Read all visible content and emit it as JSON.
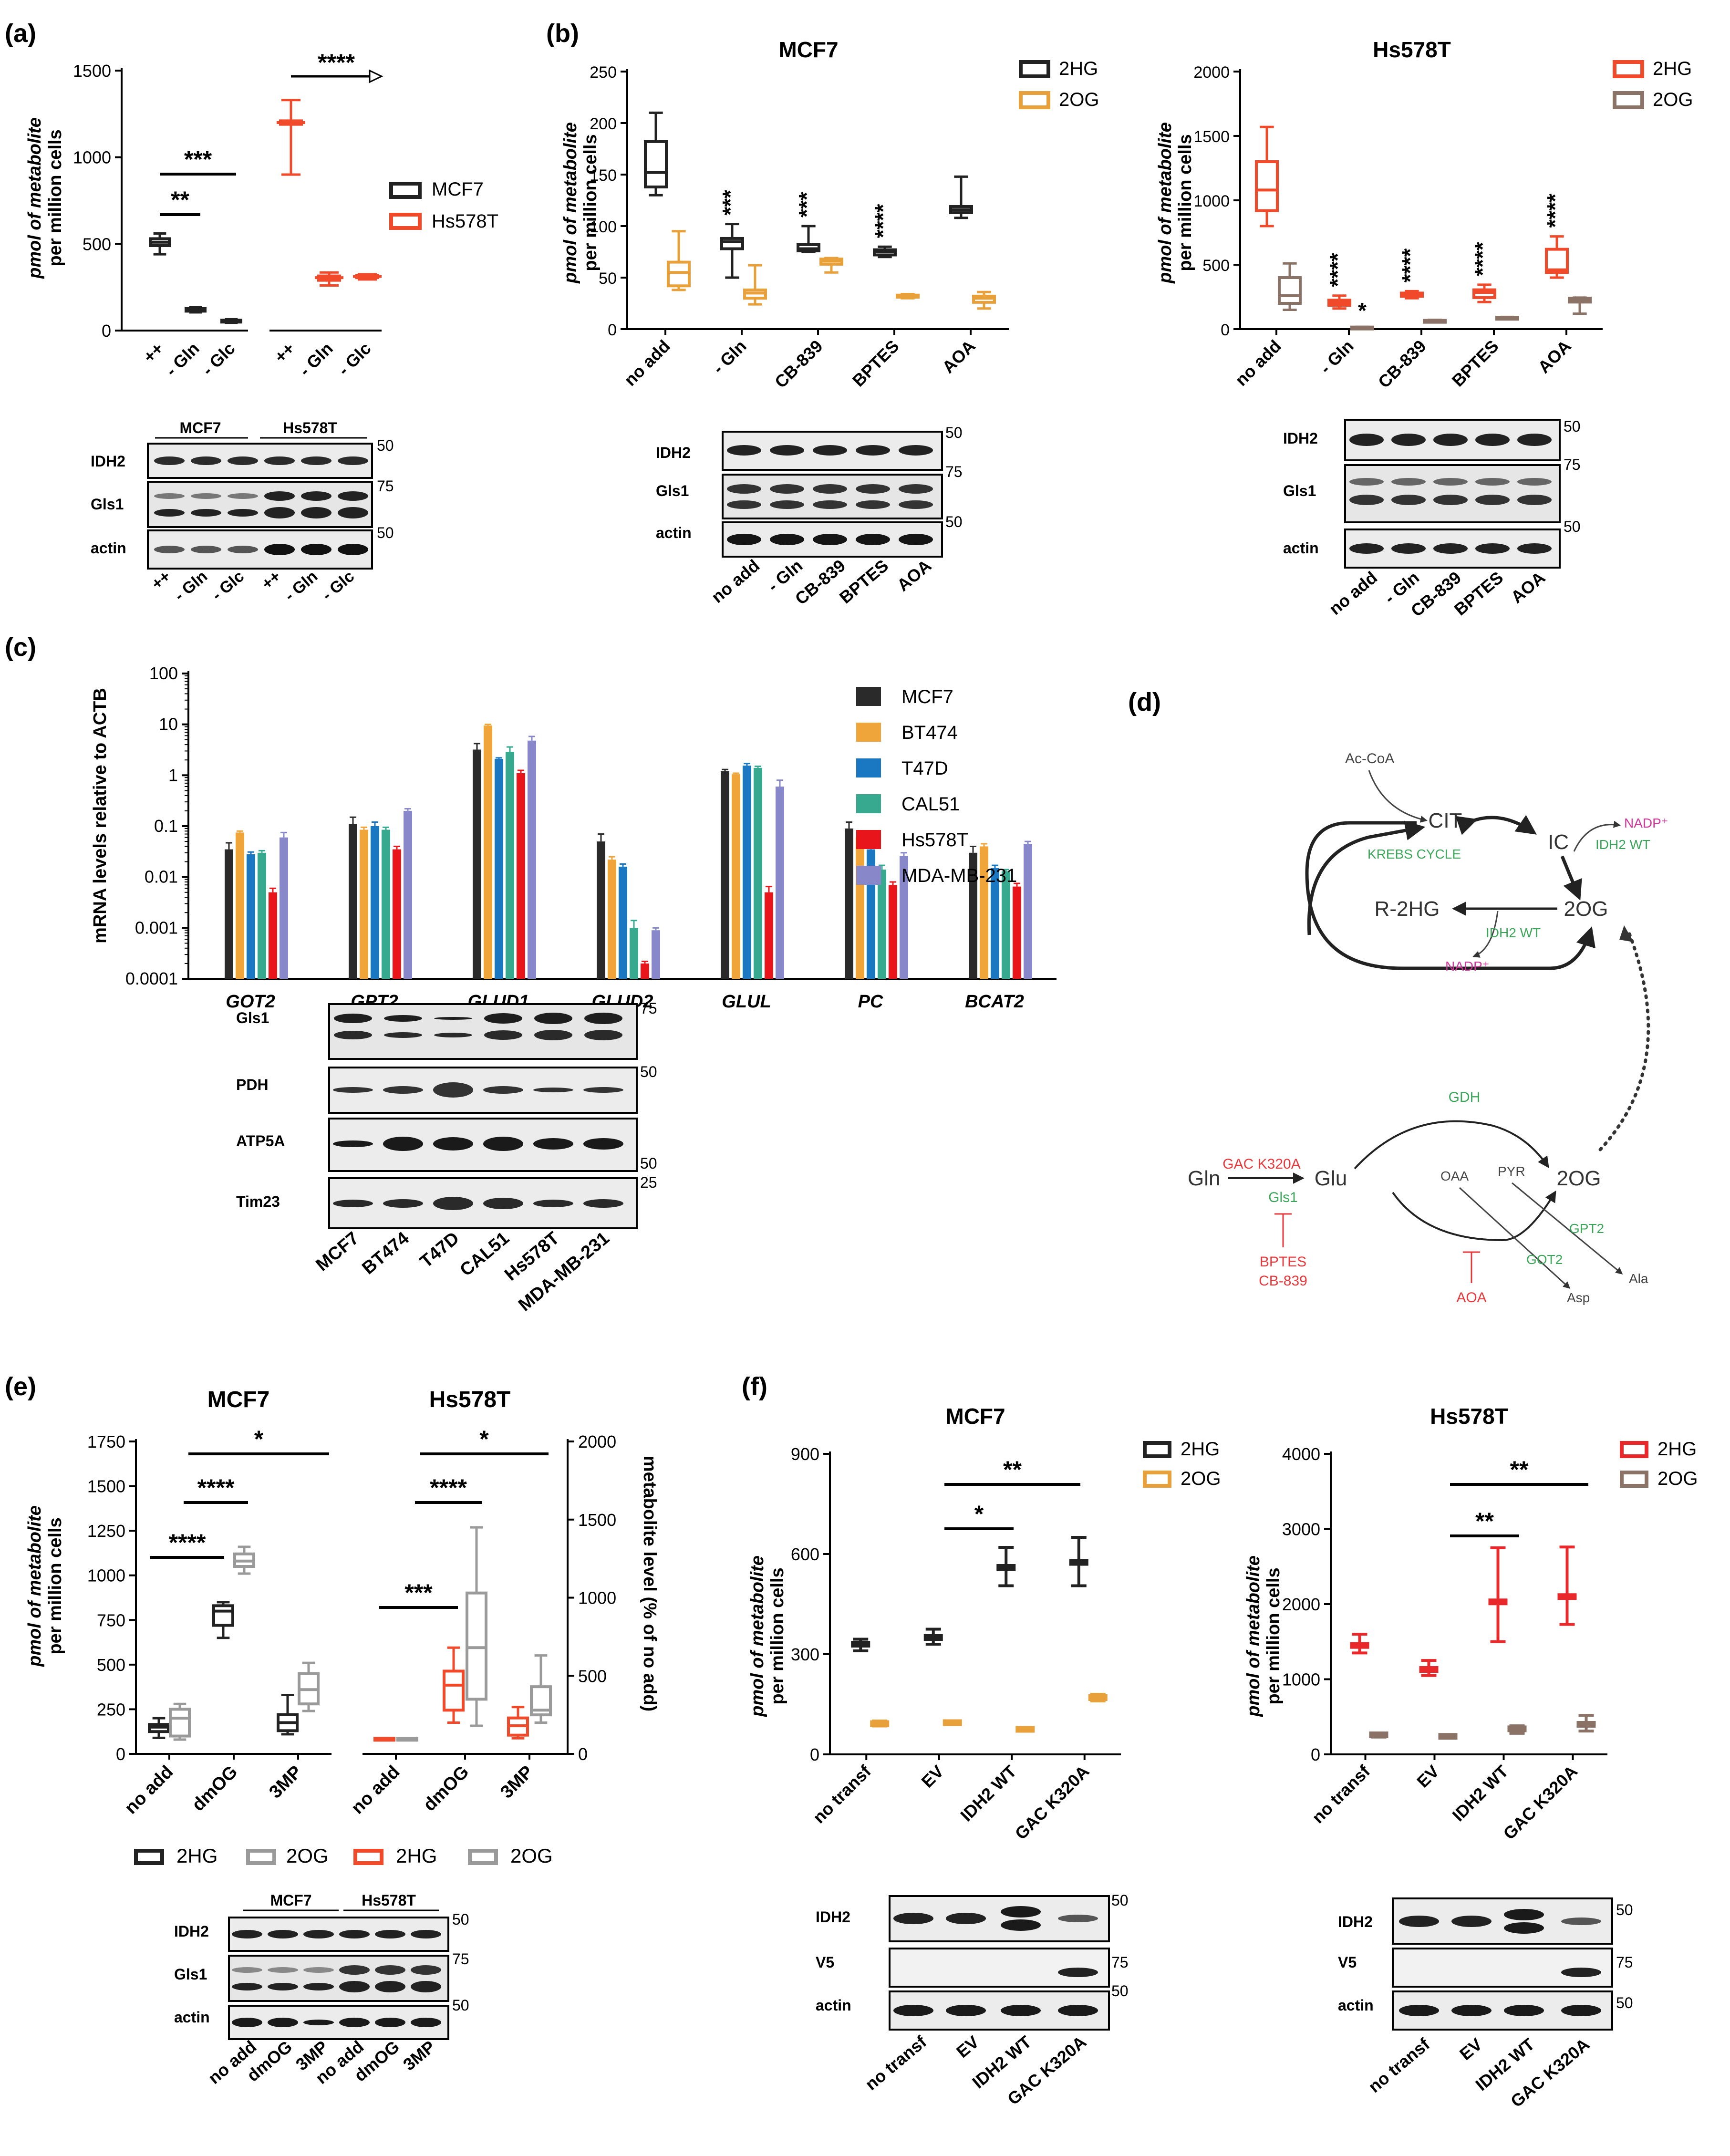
{
  "colors": {
    "black": "#222222",
    "orange": "#E8A03A",
    "red_hs": "#F04A2B",
    "brown": "#8B7266",
    "red_f": "#E8282B",
    "grey": "#9A9A9A",
    "mcf7": "#2A2A2A",
    "bt474": "#F0A53A",
    "t47d": "#1A77C2",
    "cal51": "#36A98E",
    "hs578t": "#E8151B",
    "mdamb231": "#8787C9",
    "green": "#3BA65A",
    "magenta": "#D0359A",
    "pathred": "#E8383B"
  },
  "panels": {
    "a": {
      "label": "(a)",
      "ylabel1": "pmol of metabolite",
      "ylabel2": "per million cells",
      "legend": [
        "MCF7",
        "Hs578T"
      ],
      "sig": [
        "****",
        "***",
        "**"
      ],
      "blot_headers": [
        "MCF7",
        "Hs578T"
      ],
      "blot_rows": [
        "IDH2",
        "Gls1",
        "actin"
      ],
      "blot_markers": [
        "50",
        "75",
        "50"
      ],
      "blot_lanes": [
        "++",
        "- Gln",
        "- Glc",
        "++",
        "- Gln",
        "- Glc"
      ]
    },
    "b": {
      "label": "(b)",
      "ylabel1": "pmol of metabolite",
      "ylabel2": "per million cells",
      "blot_rows": [
        "IDH2",
        "Gls1",
        "actin"
      ],
      "blot_markers": [
        "50",
        "75",
        "50"
      ],
      "blot_lanes": [
        "no add",
        "- Gln",
        "CB-839",
        "BPTES",
        "AOA"
      ]
    },
    "c": {
      "label": "(c)",
      "ylabel": "mRNA levels relative to ACTB",
      "legend": [
        "MCF7",
        "BT474",
        "T47D",
        "CAL51",
        "Hs578T",
        "MDA-MB-231"
      ],
      "blot_rows": [
        "Gls1",
        "PDH",
        "ATP5A",
        "Tim23"
      ],
      "blot_markers": [
        "75",
        "50",
        "50",
        "25"
      ],
      "blot_lanes": [
        "MCF7",
        "BT474",
        "T47D",
        "CAL51",
        "Hs578T",
        "MDA-MB-231"
      ]
    },
    "d": {
      "label": "(d)",
      "nodes": {
        "acoa": "Ac-CoA",
        "cit": "CIT",
        "ic": "IC",
        "r2hg": "R-2HG",
        "og": "2OG",
        "krebs": "KREBS CYCLE",
        "idh2wt": "IDH2 WT",
        "nadp": "NADP⁺",
        "gln": "Gln",
        "glu": "Glu",
        "og2": "2OG",
        "gdh": "GDH",
        "gac": "GAC K320A",
        "gls1": "Gls1",
        "bptes": "BPTES",
        "cb839": "CB-839",
        "oaa": "OAA",
        "pyr": "PYR",
        "gpt2": "GPT2",
        "got2": "GOT2",
        "aoa": "AOA",
        "ala": "Ala",
        "asp": "Asp"
      }
    },
    "e": {
      "label": "(e)",
      "ylabel1": "pmol of metabolite",
      "ylabel2": "per million cells",
      "ylabel_right": "metabolite level (% of no add)",
      "legend": [
        "2HG",
        "2OG",
        "2HG",
        "2OG"
      ],
      "sig": [
        "*",
        "****",
        "****",
        "*",
        "****",
        "***"
      ],
      "blot_headers": [
        "MCF7",
        "Hs578T"
      ],
      "blot_rows": [
        "IDH2",
        "Gls1",
        "actin"
      ],
      "blot_markers": [
        "50",
        "75",
        "50"
      ],
      "blot_lanes": [
        "no add",
        "dmOG",
        "3MP",
        "no add",
        "dmOG",
        "3MP"
      ]
    },
    "f": {
      "label": "(f)",
      "ylabel1": "pmol of metabolite",
      "ylabel2": "per million cells",
      "sig": [
        "**",
        "*",
        "**",
        "**"
      ],
      "blot_rows": [
        "IDH2",
        "V5",
        "actin"
      ],
      "blot_markers": [
        "50",
        "75",
        "50"
      ],
      "blot_lanes": [
        "no transf",
        "EV",
        "IDH2 WT",
        "GAC K320A"
      ]
    }
  },
  "chart_data": [
    {
      "id": "a",
      "type": "box",
      "title": "",
      "ylim": [
        0,
        1500
      ],
      "yticks": [
        0,
        500,
        1000,
        1500
      ],
      "categories": [
        "++",
        "- Gln",
        "- Glc",
        "++",
        "- Gln",
        "- Glc"
      ],
      "series": [
        {
          "name": "MCF7",
          "boxes": [
            [
              440,
              490,
              510,
              530,
              560
            ],
            [
              105,
              112,
              120,
              127,
              135
            ],
            [
              45,
              50,
              55,
              60,
              65
            ]
          ]
        },
        {
          "name": "Hs578T",
          "boxes": [
            [
              900,
              1190,
              1200,
              1210,
              1330
            ],
            [
              260,
              290,
              305,
              315,
              335
            ],
            [
              295,
              305,
              312,
              318,
              325
            ]
          ]
        }
      ]
    },
    {
      "id": "b1",
      "type": "box",
      "title": "MCF7",
      "ylim": [
        0,
        250
      ],
      "yticks": [
        0,
        50,
        100,
        150,
        200,
        250
      ],
      "categories": [
        "no add",
        "- Gln",
        "CB-839",
        "BPTES",
        "AOA"
      ],
      "annotations": [
        "",
        "***",
        "***",
        "****",
        ""
      ],
      "series": [
        {
          "name": "2HG",
          "boxes": [
            [
              130,
              138,
              152,
              182,
              210
            ],
            [
              50,
              78,
              85,
              88,
              102
            ],
            [
              75,
              76,
              78,
              82,
              100
            ],
            [
              70,
              72,
              75,
              77,
              80
            ],
            [
              108,
              113,
              116,
              119,
              148
            ]
          ]
        },
        {
          "name": "2OG",
          "boxes": [
            [
              38,
              42,
              55,
              65,
              95
            ],
            [
              24,
              30,
              35,
              38,
              62
            ],
            [
              55,
              63,
              66,
              68,
              69
            ],
            [
              30,
              31,
              32,
              33,
              34
            ],
            [
              20,
              26,
              30,
              32,
              36
            ]
          ]
        }
      ]
    },
    {
      "id": "b2",
      "type": "box",
      "title": "Hs578T",
      "ylim": [
        0,
        2000
      ],
      "yticks": [
        0,
        500,
        1000,
        1500,
        2000
      ],
      "categories": [
        "no add",
        "- Gln",
        "CB-839",
        "BPTES",
        "AOA"
      ],
      "annotations": [
        "",
        "****",
        "****",
        "****",
        "****"
      ],
      "annotations_2og": [
        "",
        "*",
        "",
        "",
        ""
      ],
      "series": [
        {
          "name": "2HG",
          "boxes": [
            [
              800,
              920,
              1080,
              1300,
              1570
            ],
            [
              160,
              185,
              205,
              225,
              260
            ],
            [
              240,
              255,
              268,
              280,
              295
            ],
            [
              210,
              245,
              285,
              305,
              345
            ],
            [
              400,
              440,
              460,
              620,
              720
            ]
          ]
        },
        {
          "name": "2OG",
          "boxes": [
            [
              150,
              200,
              260,
              400,
              510
            ],
            [
              10,
              12,
              14,
              16,
              18
            ],
            [
              55,
              60,
              65,
              68,
              72
            ],
            [
              80,
              85,
              88,
              92,
              95
            ],
            [
              120,
              210,
              230,
              240,
              245
            ]
          ]
        }
      ]
    },
    {
      "id": "c",
      "type": "bar",
      "title": "",
      "yscale": "log",
      "ylim": [
        0.0001,
        100
      ],
      "yticks": [
        "0.0001",
        "0.001",
        "0.01",
        "0.1",
        "1",
        "10",
        "100"
      ],
      "ylabel": "mRNA levels relative to ACTB",
      "categories": [
        "GOT2",
        "GPT2",
        "GLUD1",
        "GLUD2",
        "GLUL",
        "PC",
        "BCAT2"
      ],
      "series": [
        {
          "name": "MCF7",
          "values": [
            0.035,
            0.11,
            3.2,
            0.05,
            1.2,
            0.09,
            0.03
          ],
          "err": [
            0.012,
            0.04,
            1.0,
            0.02,
            0.1,
            0.03,
            0.01
          ]
        },
        {
          "name": "BT474",
          "values": [
            0.075,
            0.085,
            9.5,
            0.022,
            1.05,
            0.06,
            0.04
          ],
          "err": [
            0.005,
            0.01,
            0.5,
            0.003,
            0.05,
            0.005,
            0.005
          ]
        },
        {
          "name": "T47D",
          "values": [
            0.028,
            0.1,
            2.1,
            0.016,
            1.55,
            0.035,
            0.015
          ],
          "err": [
            0.003,
            0.02,
            0.1,
            0.002,
            0.15,
            0.01,
            0.002
          ]
        },
        {
          "name": "CAL51",
          "values": [
            0.03,
            0.085,
            2.9,
            0.001,
            1.4,
            0.014,
            0.013
          ],
          "err": [
            0.003,
            0.01,
            0.7,
            0.0004,
            0.1,
            0.003,
            0.001
          ]
        },
        {
          "name": "Hs578T",
          "values": [
            0.005,
            0.035,
            1.1,
            0.0002,
            0.005,
            0.007,
            0.0065
          ],
          "err": [
            0.001,
            0.005,
            0.15,
            2e-05,
            0.0015,
            0.001,
            0.001
          ]
        },
        {
          "name": "MDA-MB-231",
          "values": [
            0.06,
            0.2,
            4.8,
            0.0009,
            0.6,
            0.026,
            0.045
          ],
          "err": [
            0.015,
            0.02,
            1.0,
            0.0001,
            0.2,
            0.004,
            0.005
          ]
        }
      ]
    },
    {
      "id": "e1",
      "type": "box",
      "title": "MCF7",
      "ylim": [
        0,
        1750
      ],
      "yticks": [
        0,
        250,
        500,
        750,
        1000,
        1250,
        1500,
        1750
      ],
      "categories": [
        "no add",
        "dmOG",
        "3MP"
      ],
      "series": [
        {
          "name": "2HG",
          "boxes": [
            [
              90,
              125,
              150,
              165,
              200
            ],
            [
              650,
              720,
              800,
              830,
              850
            ],
            [
              110,
              130,
              175,
              220,
              330
            ]
          ]
        },
        {
          "name": "2OG",
          "boxes": [
            [
              80,
              100,
              200,
              250,
              280
            ],
            [
              1010,
              1050,
              1080,
              1120,
              1160
            ],
            [
              240,
              280,
              360,
              450,
              510
            ]
          ]
        }
      ]
    },
    {
      "id": "e2",
      "type": "box",
      "title": "Hs578T",
      "ylim": [
        0,
        2000
      ],
      "yticks": [
        0,
        500,
        1000,
        1500,
        2000
      ],
      "ylabel_right": "metabolite level (% of no add)",
      "categories": [
        "no add",
        "dmOG",
        "3MP"
      ],
      "series": [
        {
          "name": "2HG",
          "boxes": [
            [
              100,
              100,
              100,
              100,
              100
            ],
            [
              200,
              280,
              440,
              530,
              680
            ],
            [
              100,
              120,
              180,
              230,
              300
            ]
          ]
        },
        {
          "name": "2OG",
          "boxes": [
            [
              100,
              100,
              100,
              100,
              100
            ],
            [
              180,
              350,
              680,
              1030,
              1450
            ],
            [
              200,
              250,
              280,
              430,
              630
            ]
          ]
        }
      ]
    },
    {
      "id": "f1",
      "type": "errorbar",
      "title": "MCF7",
      "ylim": [
        0,
        900
      ],
      "yticks": [
        0,
        300,
        600,
        900
      ],
      "categories": [
        "no transf",
        "EV",
        "IDH2 WT",
        "GAC K320A"
      ],
      "series": [
        {
          "name": "2HG",
          "mean": [
            330,
            350,
            560,
            575
          ],
          "low": [
            310,
            330,
            505,
            505
          ],
          "high": [
            345,
            375,
            620,
            650
          ]
        },
        {
          "name": "2OG",
          "mean": [
            92,
            95,
            75,
            170
          ],
          "low": [
            85,
            92,
            70,
            160
          ],
          "high": [
            100,
            98,
            80,
            180
          ]
        }
      ]
    },
    {
      "id": "f2",
      "type": "errorbar",
      "title": "Hs578T",
      "ylim": [
        0,
        4000
      ],
      "yticks": [
        0,
        1000,
        2000,
        3000,
        4000
      ],
      "categories": [
        "no transf",
        "EV",
        "IDH2 WT",
        "GAC K320A"
      ],
      "series": [
        {
          "name": "2HG",
          "mean": [
            1450,
            1130,
            2030,
            2100
          ],
          "low": [
            1350,
            1050,
            1500,
            1730
          ],
          "high": [
            1600,
            1250,
            2750,
            2760
          ]
        },
        {
          "name": "2OG",
          "mean": [
            260,
            240,
            340,
            400
          ],
          "low": [
            230,
            225,
            280,
            310
          ],
          "high": [
            280,
            250,
            380,
            520
          ]
        }
      ]
    }
  ]
}
